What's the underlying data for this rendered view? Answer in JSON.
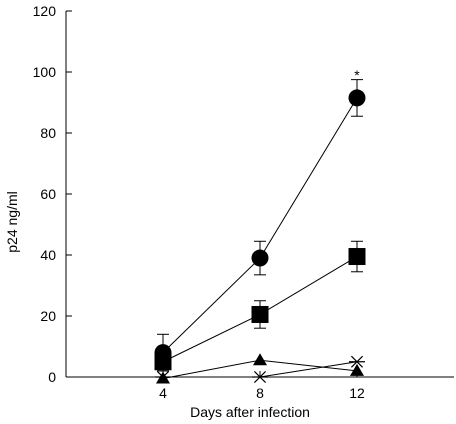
{
  "chart_data": {
    "type": "line",
    "title": "",
    "xlabel": "Days after infection",
    "ylabel": "p24 ng/ml",
    "x": [
      4,
      8,
      12
    ],
    "xlim": [
      0,
      16
    ],
    "ylim": [
      0,
      120
    ],
    "yticks": [
      0,
      20,
      40,
      60,
      80,
      100,
      120
    ],
    "xticks": [
      4,
      8,
      12
    ],
    "grid": false,
    "legend": "none",
    "color": "#000000",
    "series": [
      {
        "marker": "circle",
        "values": [
          8,
          39,
          91.5
        ],
        "err": [
          6,
          5.5,
          6
        ]
      },
      {
        "marker": "square",
        "values": [
          5,
          20.5,
          39.5
        ],
        "err": [
          3,
          4.5,
          5
        ]
      },
      {
        "marker": "triangle",
        "values": [
          -0.5,
          5.5,
          2
        ],
        "err": [
          0,
          0,
          0
        ]
      },
      {
        "marker": "star",
        "values": [
          0,
          0,
          5
        ],
        "err": [
          0,
          0,
          0
        ]
      }
    ],
    "annotations": [
      {
        "text": "*",
        "x": 12,
        "y": 100
      }
    ]
  }
}
